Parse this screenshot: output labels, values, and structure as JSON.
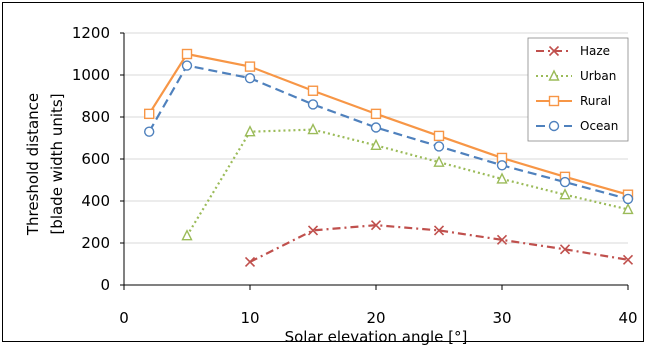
{
  "chart_data": {
    "type": "line",
    "xlabel": "Solar elevation angle [°]",
    "ylabel_lines": [
      "Threshold distance",
      "[blade width units]"
    ],
    "xlim": [
      0,
      40
    ],
    "ylim": [
      0,
      1200
    ],
    "xticks": [
      0,
      10,
      20,
      30,
      40
    ],
    "yticks": [
      0,
      200,
      400,
      600,
      800,
      1000,
      1200
    ],
    "grid": "horizontal",
    "legend_position": "top-right",
    "series": [
      {
        "name": "Haze",
        "color": "#c0504d",
        "marker": "x",
        "dash": "8,4,2,4",
        "x": [
          10,
          15,
          20,
          25,
          30,
          35,
          40
        ],
        "y": [
          110,
          260,
          285,
          260,
          215,
          170,
          120
        ]
      },
      {
        "name": "Urban",
        "color": "#9bbb59",
        "marker": "triangle",
        "dash": "2,3",
        "x": [
          5,
          10,
          15,
          20,
          25,
          30,
          35,
          40
        ],
        "y": [
          235,
          730,
          740,
          665,
          585,
          505,
          430,
          360
        ]
      },
      {
        "name": "Rural",
        "color": "#f79646",
        "marker": "square",
        "dash": "",
        "x": [
          2,
          5,
          10,
          15,
          20,
          25,
          30,
          35,
          40
        ],
        "y": [
          815,
          1100,
          1040,
          925,
          815,
          710,
          605,
          515,
          430
        ]
      },
      {
        "name": "Ocean",
        "color": "#4f81bd",
        "marker": "circle",
        "dash": "9,5",
        "x": [
          2,
          5,
          10,
          15,
          20,
          25,
          30,
          35,
          40
        ],
        "y": [
          730,
          1045,
          985,
          860,
          750,
          660,
          570,
          490,
          410
        ]
      }
    ]
  }
}
